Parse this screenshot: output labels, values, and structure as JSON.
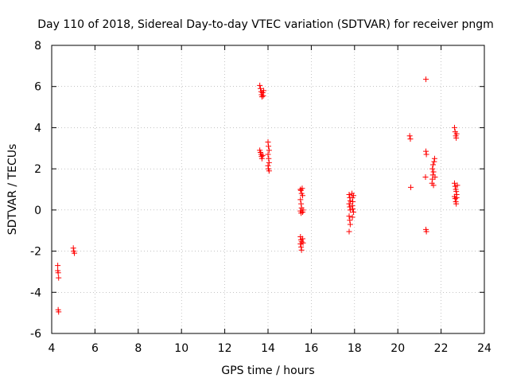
{
  "chart_data": {
    "type": "scatter",
    "title": "Day 110 of 2018, Sidereal Day-to-day VTEC variation (SDTVAR) for receiver pngm",
    "xlabel": "GPS time / hours",
    "ylabel": "SDTVAR / TECUs",
    "xlim": [
      4,
      24
    ],
    "ylim": [
      -6,
      8
    ],
    "x_ticks": [
      4,
      6,
      8,
      10,
      12,
      14,
      16,
      18,
      20,
      22,
      24
    ],
    "y_ticks": [
      -6,
      -4,
      -2,
      0,
      2,
      4,
      6,
      8
    ],
    "x_tick_labels": [
      "4",
      "6",
      "8",
      "10",
      "12",
      "14",
      "16",
      "18",
      "20",
      "22",
      "24"
    ],
    "y_tick_labels": [
      "-6",
      "-4",
      "-2",
      "0",
      "2",
      "4",
      "6",
      "8"
    ],
    "grid": true,
    "marker": "plus",
    "color": "#ff0000",
    "series": [
      {
        "name": "pngm",
        "points": [
          [
            4.28,
            -2.7
          ],
          [
            4.28,
            -2.95
          ],
          [
            4.3,
            -3.05
          ],
          [
            4.32,
            -3.3
          ],
          [
            4.3,
            -4.85
          ],
          [
            4.32,
            -4.95
          ],
          [
            5.0,
            -1.85
          ],
          [
            5.02,
            -2.0
          ],
          [
            5.05,
            -2.1
          ],
          [
            13.62,
            6.05
          ],
          [
            13.65,
            5.9
          ],
          [
            13.68,
            5.75
          ],
          [
            13.7,
            5.6
          ],
          [
            13.72,
            5.5
          ],
          [
            13.75,
            5.7
          ],
          [
            13.78,
            5.55
          ],
          [
            13.8,
            5.8
          ],
          [
            13.62,
            2.9
          ],
          [
            13.65,
            2.8
          ],
          [
            13.68,
            2.7
          ],
          [
            13.7,
            2.6
          ],
          [
            13.72,
            2.5
          ],
          [
            13.75,
            2.65
          ],
          [
            14.0,
            3.3
          ],
          [
            14.02,
            3.1
          ],
          [
            14.05,
            2.9
          ],
          [
            14.0,
            2.7
          ],
          [
            14.03,
            2.5
          ],
          [
            14.05,
            2.3
          ],
          [
            14.0,
            2.15
          ],
          [
            14.02,
            2.0
          ],
          [
            14.05,
            1.9
          ],
          [
            15.5,
            1.0
          ],
          [
            15.52,
            0.95
          ],
          [
            15.55,
            0.8
          ],
          [
            15.5,
            0.5
          ],
          [
            15.53,
            0.3
          ],
          [
            15.55,
            0.1
          ],
          [
            15.5,
            -0.05
          ],
          [
            15.53,
            -0.15
          ],
          [
            15.58,
            1.05
          ],
          [
            15.6,
            0.7
          ],
          [
            15.62,
            0.0
          ],
          [
            15.6,
            -0.1
          ],
          [
            15.5,
            -1.3
          ],
          [
            15.52,
            -1.45
          ],
          [
            15.55,
            -1.55
          ],
          [
            15.5,
            -1.65
          ],
          [
            15.53,
            -1.8
          ],
          [
            15.55,
            -1.95
          ],
          [
            15.6,
            -1.4
          ],
          [
            15.62,
            -1.6
          ],
          [
            17.75,
            0.75
          ],
          [
            17.78,
            0.6
          ],
          [
            17.8,
            0.45
          ],
          [
            17.75,
            0.3
          ],
          [
            17.78,
            0.15
          ],
          [
            17.8,
            0.0
          ],
          [
            17.75,
            -0.3
          ],
          [
            17.78,
            -0.5
          ],
          [
            17.8,
            -0.7
          ],
          [
            17.75,
            -1.05
          ],
          [
            17.88,
            0.8
          ],
          [
            17.9,
            0.6
          ],
          [
            17.92,
            0.4
          ],
          [
            17.9,
            0.2
          ],
          [
            17.92,
            0.05
          ],
          [
            17.95,
            -0.1
          ],
          [
            17.9,
            -0.35
          ],
          [
            17.95,
            0.7
          ],
          [
            20.55,
            3.6
          ],
          [
            20.58,
            3.45
          ],
          [
            20.6,
            1.1
          ],
          [
            21.3,
            6.35
          ],
          [
            21.3,
            2.85
          ],
          [
            21.32,
            2.7
          ],
          [
            21.28,
            1.6
          ],
          [
            21.3,
            -0.95
          ],
          [
            21.32,
            -1.05
          ],
          [
            21.58,
            1.3
          ],
          [
            21.6,
            1.5
          ],
          [
            21.62,
            1.7
          ],
          [
            21.65,
            1.85
          ],
          [
            21.6,
            2.0
          ],
          [
            21.63,
            2.2
          ],
          [
            21.68,
            2.35
          ],
          [
            21.7,
            2.5
          ],
          [
            21.72,
            1.6
          ],
          [
            21.65,
            1.2
          ],
          [
            22.62,
            4.0
          ],
          [
            22.65,
            3.8
          ],
          [
            22.68,
            3.6
          ],
          [
            22.7,
            3.5
          ],
          [
            22.72,
            3.7
          ],
          [
            22.62,
            1.3
          ],
          [
            22.65,
            1.15
          ],
          [
            22.68,
            1.0
          ],
          [
            22.7,
            0.9
          ],
          [
            22.72,
            0.75
          ],
          [
            22.62,
            0.65
          ],
          [
            22.65,
            0.55
          ],
          [
            22.68,
            0.4
          ],
          [
            22.7,
            0.3
          ],
          [
            22.75,
            1.2
          ],
          [
            22.72,
            0.6
          ]
        ]
      }
    ]
  }
}
